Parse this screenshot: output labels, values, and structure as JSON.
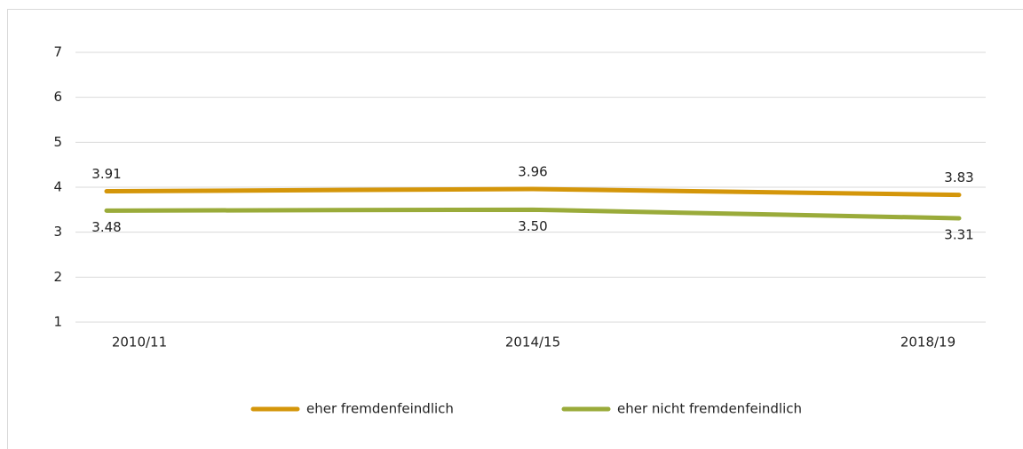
{
  "chart_data": {
    "type": "line",
    "categories": [
      "2010/11",
      "2014/15",
      "2018/19"
    ],
    "series": [
      {
        "name": "eher fremdenfeindlich",
        "color": "#d4960a",
        "values": [
          3.91,
          3.96,
          3.83
        ],
        "value_labels": [
          "3.91",
          "3.96",
          "3.83"
        ]
      },
      {
        "name": "eher nicht fremdenfeindlich",
        "color": "#9aab3a",
        "values": [
          3.48,
          3.5,
          3.31
        ],
        "value_labels": [
          "3.48",
          "3.50",
          "3.31"
        ]
      }
    ],
    "ylim": [
      1,
      7
    ],
    "yticks": [
      1,
      2,
      3,
      4,
      5,
      6,
      7
    ],
    "grid": true,
    "legend": "bottom"
  }
}
